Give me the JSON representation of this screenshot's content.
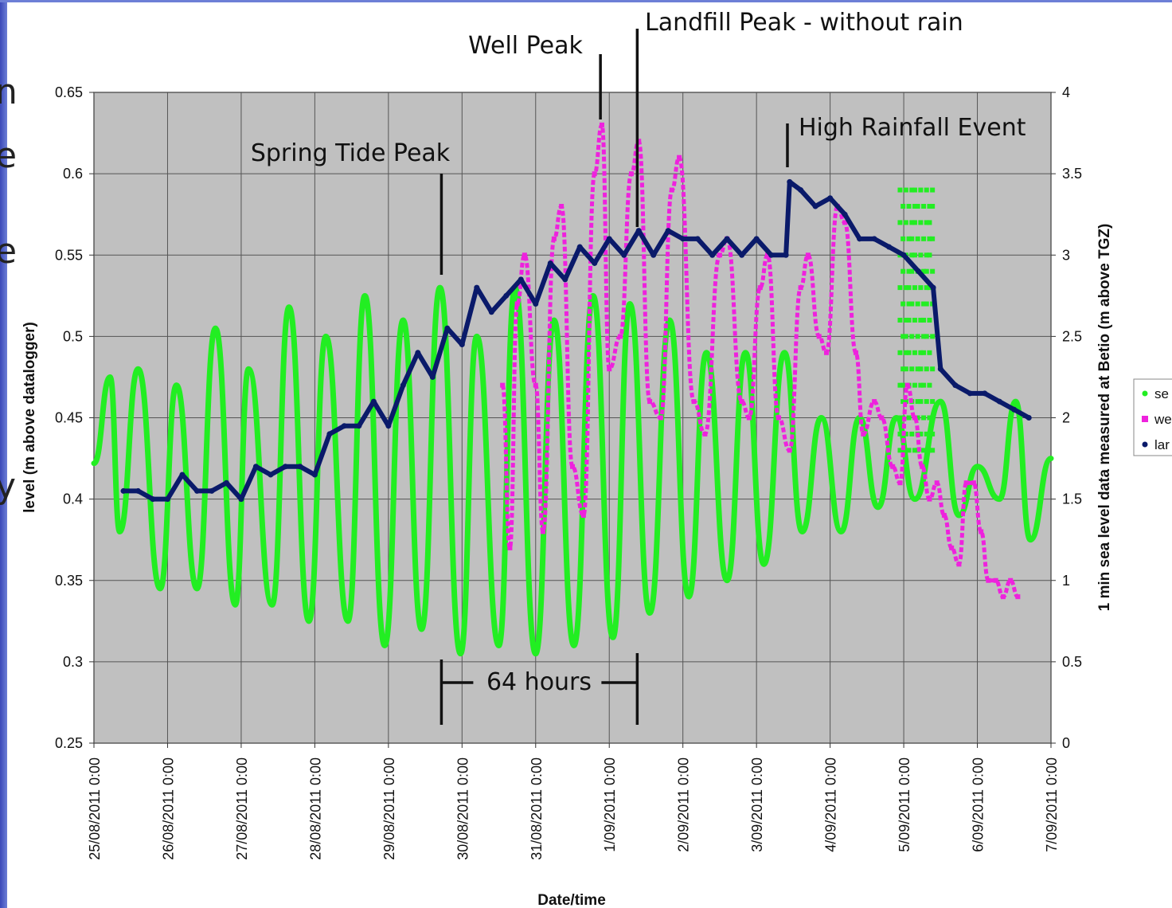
{
  "slide": {
    "side_glyphs": [
      "n",
      "e",
      "e",
      "y"
    ]
  },
  "chart_data": {
    "type": "scatter",
    "title": "",
    "xlabel": "Date/time",
    "ylabel": "level (m above datalogger)",
    "y2label": "1 min sea level data measured at Betio (m above TGZ)",
    "xlim": [
      0,
      13
    ],
    "ylim": [
      0.25,
      0.65
    ],
    "y2lim": [
      0,
      4
    ],
    "x_ticks": [
      "25/08/2011 0:00",
      "26/08/2011 0:00",
      "27/08/2011 0:00",
      "28/08/2011 0:00",
      "29/08/2011 0:00",
      "30/08/2011 0:00",
      "31/08/2011 0:00",
      "1/09/2011 0:00",
      "2/09/2011 0:00",
      "3/09/2011 0:00",
      "4/09/2011 0:00",
      "5/09/2011 0:00",
      "6/09/2011 0:00",
      "7/09/2011 0:00"
    ],
    "y_ticks": [
      "0.25",
      "0.3",
      "0.35",
      "0.4",
      "0.45",
      "0.5",
      "0.55",
      "0.6",
      "0.65"
    ],
    "y2_ticks": [
      "0",
      "0.5",
      "1",
      "1.5",
      "2",
      "2.5",
      "3",
      "3.5",
      "4"
    ],
    "grid": true,
    "legend_position": "right",
    "series": [
      {
        "label": "se",
        "color": "#22ee22",
        "axis": "y2",
        "period_days": 0.517,
        "points": [
          [
            0.0,
            1.72
          ],
          [
            0.22,
            2.25
          ],
          [
            0.35,
            1.3
          ],
          [
            0.6,
            2.3
          ],
          [
            0.9,
            0.95
          ],
          [
            1.12,
            2.2
          ],
          [
            1.4,
            0.95
          ],
          [
            1.65,
            2.55
          ],
          [
            1.92,
            0.85
          ],
          [
            2.1,
            2.3
          ],
          [
            2.42,
            0.85
          ],
          [
            2.65,
            2.68
          ],
          [
            2.92,
            0.75
          ],
          [
            3.15,
            2.5
          ],
          [
            3.45,
            0.75
          ],
          [
            3.68,
            2.75
          ],
          [
            3.95,
            0.6
          ],
          [
            4.2,
            2.6
          ],
          [
            4.45,
            0.7
          ],
          [
            4.7,
            2.8
          ],
          [
            4.98,
            0.55
          ],
          [
            5.2,
            2.5
          ],
          [
            5.5,
            0.6
          ],
          [
            5.72,
            2.8
          ],
          [
            6.0,
            0.55
          ],
          [
            6.25,
            2.6
          ],
          [
            6.52,
            0.6
          ],
          [
            6.78,
            2.75
          ],
          [
            7.05,
            0.65
          ],
          [
            7.28,
            2.7
          ],
          [
            7.55,
            0.8
          ],
          [
            7.82,
            2.6
          ],
          [
            8.08,
            0.9
          ],
          [
            8.32,
            2.4
          ],
          [
            8.6,
            1.0
          ],
          [
            8.85,
            2.4
          ],
          [
            9.1,
            1.1
          ],
          [
            9.38,
            2.4
          ],
          [
            9.62,
            1.3
          ],
          [
            9.88,
            2.0
          ],
          [
            10.15,
            1.3
          ],
          [
            10.4,
            2.0
          ],
          [
            10.65,
            1.45
          ],
          [
            10.9,
            2.0
          ],
          [
            11.15,
            1.5
          ],
          [
            11.5,
            2.1
          ],
          [
            11.75,
            1.4
          ],
          [
            12.0,
            1.7
          ],
          [
            12.3,
            1.5
          ],
          [
            12.52,
            2.1
          ],
          [
            12.72,
            1.25
          ],
          [
            13.0,
            1.75
          ]
        ]
      },
      {
        "label": "we",
        "color": "#ee22dd",
        "axis": "y",
        "points": [
          [
            5.55,
            0.47
          ],
          [
            5.65,
            0.37
          ],
          [
            5.75,
            0.52
          ],
          [
            5.85,
            0.55
          ],
          [
            6.0,
            0.47
          ],
          [
            6.1,
            0.38
          ],
          [
            6.25,
            0.56
          ],
          [
            6.35,
            0.58
          ],
          [
            6.5,
            0.42
          ],
          [
            6.65,
            0.39
          ],
          [
            6.8,
            0.6
          ],
          [
            6.9,
            0.63
          ],
          [
            7.0,
            0.48
          ],
          [
            7.15,
            0.5
          ],
          [
            7.3,
            0.6
          ],
          [
            7.4,
            0.62
          ],
          [
            7.55,
            0.46
          ],
          [
            7.7,
            0.45
          ],
          [
            7.85,
            0.59
          ],
          [
            7.95,
            0.61
          ],
          [
            8.15,
            0.46
          ],
          [
            8.3,
            0.44
          ],
          [
            8.5,
            0.55
          ],
          [
            8.6,
            0.56
          ],
          [
            8.8,
            0.46
          ],
          [
            8.9,
            0.45
          ],
          [
            9.05,
            0.53
          ],
          [
            9.15,
            0.55
          ],
          [
            9.3,
            0.45
          ],
          [
            9.45,
            0.43
          ],
          [
            9.6,
            0.53
          ],
          [
            9.7,
            0.55
          ],
          [
            9.85,
            0.5
          ],
          [
            9.95,
            0.49
          ],
          [
            10.1,
            0.58
          ],
          [
            10.2,
            0.57
          ],
          [
            10.35,
            0.49
          ],
          [
            10.45,
            0.44
          ],
          [
            10.6,
            0.46
          ],
          [
            10.7,
            0.45
          ],
          [
            10.85,
            0.42
          ],
          [
            10.95,
            0.41
          ],
          [
            11.05,
            0.47
          ],
          [
            11.15,
            0.45
          ],
          [
            11.25,
            0.42
          ],
          [
            11.35,
            0.4
          ],
          [
            11.45,
            0.41
          ],
          [
            11.55,
            0.39
          ],
          [
            11.65,
            0.37
          ],
          [
            11.75,
            0.36
          ],
          [
            11.85,
            0.41
          ],
          [
            11.95,
            0.41
          ],
          [
            12.05,
            0.38
          ],
          [
            12.15,
            0.35
          ],
          [
            12.25,
            0.35
          ],
          [
            12.35,
            0.34
          ],
          [
            12.45,
            0.35
          ],
          [
            12.55,
            0.34
          ]
        ]
      },
      {
        "label": "lar",
        "color": "#0a1a6a",
        "axis": "y",
        "points": [
          [
            0.4,
            0.405
          ],
          [
            0.6,
            0.405
          ],
          [
            0.8,
            0.4
          ],
          [
            1.0,
            0.4
          ],
          [
            1.2,
            0.415
          ],
          [
            1.4,
            0.405
          ],
          [
            1.6,
            0.405
          ],
          [
            1.8,
            0.41
          ],
          [
            2.0,
            0.4
          ],
          [
            2.2,
            0.42
          ],
          [
            2.4,
            0.415
          ],
          [
            2.6,
            0.42
          ],
          [
            2.8,
            0.42
          ],
          [
            3.0,
            0.415
          ],
          [
            3.2,
            0.44
          ],
          [
            3.4,
            0.445
          ],
          [
            3.6,
            0.445
          ],
          [
            3.8,
            0.46
          ],
          [
            4.0,
            0.445
          ],
          [
            4.2,
            0.47
          ],
          [
            4.4,
            0.49
          ],
          [
            4.6,
            0.475
          ],
          [
            4.8,
            0.505
          ],
          [
            5.0,
            0.495
          ],
          [
            5.2,
            0.53
          ],
          [
            5.4,
            0.515
          ],
          [
            5.6,
            0.525
          ],
          [
            5.8,
            0.535
          ],
          [
            6.0,
            0.52
          ],
          [
            6.2,
            0.545
          ],
          [
            6.4,
            0.535
          ],
          [
            6.6,
            0.555
          ],
          [
            6.8,
            0.545
          ],
          [
            7.0,
            0.56
          ],
          [
            7.2,
            0.55
          ],
          [
            7.4,
            0.565
          ],
          [
            7.6,
            0.55
          ],
          [
            7.8,
            0.565
          ],
          [
            8.0,
            0.56
          ],
          [
            8.2,
            0.56
          ],
          [
            8.4,
            0.55
          ],
          [
            8.6,
            0.56
          ],
          [
            8.8,
            0.55
          ],
          [
            9.0,
            0.56
          ],
          [
            9.2,
            0.55
          ],
          [
            9.4,
            0.55
          ],
          [
            9.45,
            0.595
          ],
          [
            9.6,
            0.59
          ],
          [
            9.8,
            0.58
          ],
          [
            10.0,
            0.585
          ],
          [
            10.2,
            0.575
          ],
          [
            10.4,
            0.56
          ],
          [
            10.6,
            0.56
          ],
          [
            10.8,
            0.555
          ],
          [
            11.0,
            0.55
          ],
          [
            11.2,
            0.54
          ],
          [
            11.4,
            0.53
          ],
          [
            11.5,
            0.48
          ],
          [
            11.7,
            0.47
          ],
          [
            11.9,
            0.465
          ],
          [
            12.1,
            0.465
          ],
          [
            12.3,
            0.46
          ],
          [
            12.5,
            0.455
          ],
          [
            12.7,
            0.45
          ]
        ]
      }
    ],
    "annotations": [
      {
        "text": "Well Peak",
        "x": 6.88,
        "line_from": 0.625,
        "line_to": 0.63
      },
      {
        "text": "Landfill Peak - without rain",
        "x": 7.38,
        "line_from": 0.565,
        "line_to": 0.63
      },
      {
        "text": "Spring Tide Peak",
        "x": 4.72,
        "line_from": 0.545,
        "line_to": 0.59
      },
      {
        "text": "High Rainfall Event",
        "x": 9.42,
        "line_from": 0.6,
        "line_to": 0.63
      },
      {
        "text": "64 hours",
        "x_from": 4.72,
        "x_to": 7.38
      }
    ]
  }
}
